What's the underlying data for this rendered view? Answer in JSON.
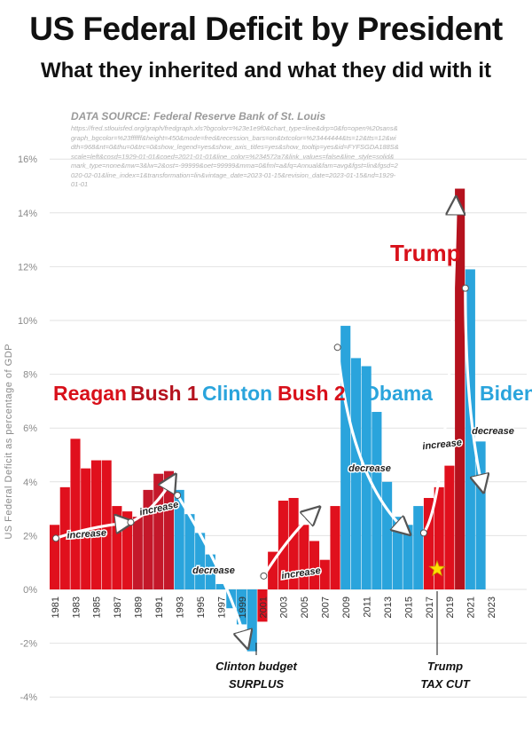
{
  "header": {
    "title": "US Federal Deficit by President",
    "subtitle": "What they inherited and what they did with it"
  },
  "source": {
    "title": "DATA SOURCE: Federal Reserve Bank of St. Louis",
    "url": "https://fred.stlouisfed.org/graph/fredgraph.xls?bgcolor=%23e1e9f0&chart_type=line&drp=0&fo=open%20sans&graph_bgcolor=%23ffffff&height=450&mode=fred&recession_bars=on&txtcolor=%23444444&ts=12&tts=12&width=968&nt=0&thu=0&trc=0&show_legend=yes&show_axis_titles=yes&show_tooltip=yes&id=FYFSGDA188S&scale=left&cosd=1929-01-01&coed=2021-01-01&line_color=%234572a7&link_values=false&line_style=solid&mark_type=none&mw=3&lw=2&ost=-99999&oet=99999&mma=0&fml=a&fq=Annual&fam=avg&fgst=lin&fgsd=2020-02-01&line_index=1&transformation=lin&vintage_date=2023-01-15&revision_date=2023-01-15&nd=1929-01-01"
  },
  "chart_data": {
    "type": "bar",
    "ylabel": "US Federal Deficit as percentage of GDP",
    "ylim": [
      -4,
      16
    ],
    "yticks": [
      -4,
      -2,
      0,
      2,
      4,
      6,
      8,
      10,
      12,
      14,
      16
    ],
    "ytick_labels": [
      "-4%",
      "-2%",
      "0%",
      "2%",
      "4%",
      "6%",
      "8%",
      "10%",
      "12%",
      "14%",
      "16%"
    ],
    "x": [
      1981,
      1982,
      1983,
      1984,
      1985,
      1986,
      1987,
      1988,
      1989,
      1990,
      1991,
      1992,
      1993,
      1994,
      1995,
      1996,
      1997,
      1998,
      1999,
      2000,
      2001,
      2002,
      2003,
      2004,
      2005,
      2006,
      2007,
      2008,
      2009,
      2010,
      2011,
      2012,
      2013,
      2014,
      2015,
      2016,
      2017,
      2018,
      2019,
      2020,
      2021,
      2022
    ],
    "xtick_labels": [
      "1981",
      "1983",
      "1985",
      "1987",
      "1989",
      "1991",
      "1993",
      "1995",
      "1997",
      "1999",
      "2001",
      "2003",
      "2005",
      "2007",
      "2009",
      "2011",
      "2013",
      "2015",
      "2017",
      "2019",
      "2021",
      "2023"
    ],
    "values": [
      2.4,
      3.8,
      5.6,
      4.5,
      4.8,
      4.8,
      3.1,
      2.9,
      2.7,
      3.7,
      4.3,
      4.4,
      3.7,
      2.8,
      2.1,
      1.3,
      0.2,
      -0.7,
      -1.3,
      -2.3,
      -1.2,
      1.4,
      3.3,
      3.4,
      2.4,
      1.8,
      1.1,
      3.1,
      9.8,
      8.6,
      8.3,
      6.6,
      4.0,
      2.7,
      2.4,
      3.1,
      3.4,
      3.8,
      4.6,
      14.9,
      11.9,
      5.5
    ],
    "colors": [
      "#e0101d",
      "#e0101d",
      "#e0101d",
      "#e0101d",
      "#e0101d",
      "#e0101d",
      "#e0101d",
      "#e0101d",
      "#c4182a",
      "#c4182a",
      "#c4182a",
      "#c4182a",
      "#2aa4dc",
      "#2aa4dc",
      "#2aa4dc",
      "#2aa4dc",
      "#2aa4dc",
      "#2aa4dc",
      "#2aa4dc",
      "#2aa4dc",
      "#e0101d",
      "#e0101d",
      "#e0101d",
      "#e0101d",
      "#e0101d",
      "#e0101d",
      "#e0101d",
      "#e0101d",
      "#2aa4dc",
      "#2aa4dc",
      "#2aa4dc",
      "#2aa4dc",
      "#2aa4dc",
      "#2aa4dc",
      "#2aa4dc",
      "#2aa4dc",
      "#e0101d",
      "#e0101d",
      "#e0101d",
      "#b5121e",
      "#2aa4dc",
      "#2aa4dc"
    ],
    "presidents": [
      {
        "name": "Reagan",
        "color": "#d8101a"
      },
      {
        "name": "Bush 1",
        "color": "#b5121e"
      },
      {
        "name": "Clinton",
        "color": "#2aa4dc"
      },
      {
        "name": "Bush 2",
        "color": "#d8101a"
      },
      {
        "name": "Obama",
        "color": "#2aa4dc"
      },
      {
        "name": "Trump",
        "color": "#d8101a"
      },
      {
        "name": "Biden",
        "color": "#2aa4dc"
      }
    ],
    "annotations": {
      "increase": "increase",
      "decrease": "decrease",
      "clinton_note": [
        "Clinton budget",
        "SURPLUS"
      ],
      "trump_note": [
        "Trump",
        "TAX CUT"
      ]
    }
  }
}
